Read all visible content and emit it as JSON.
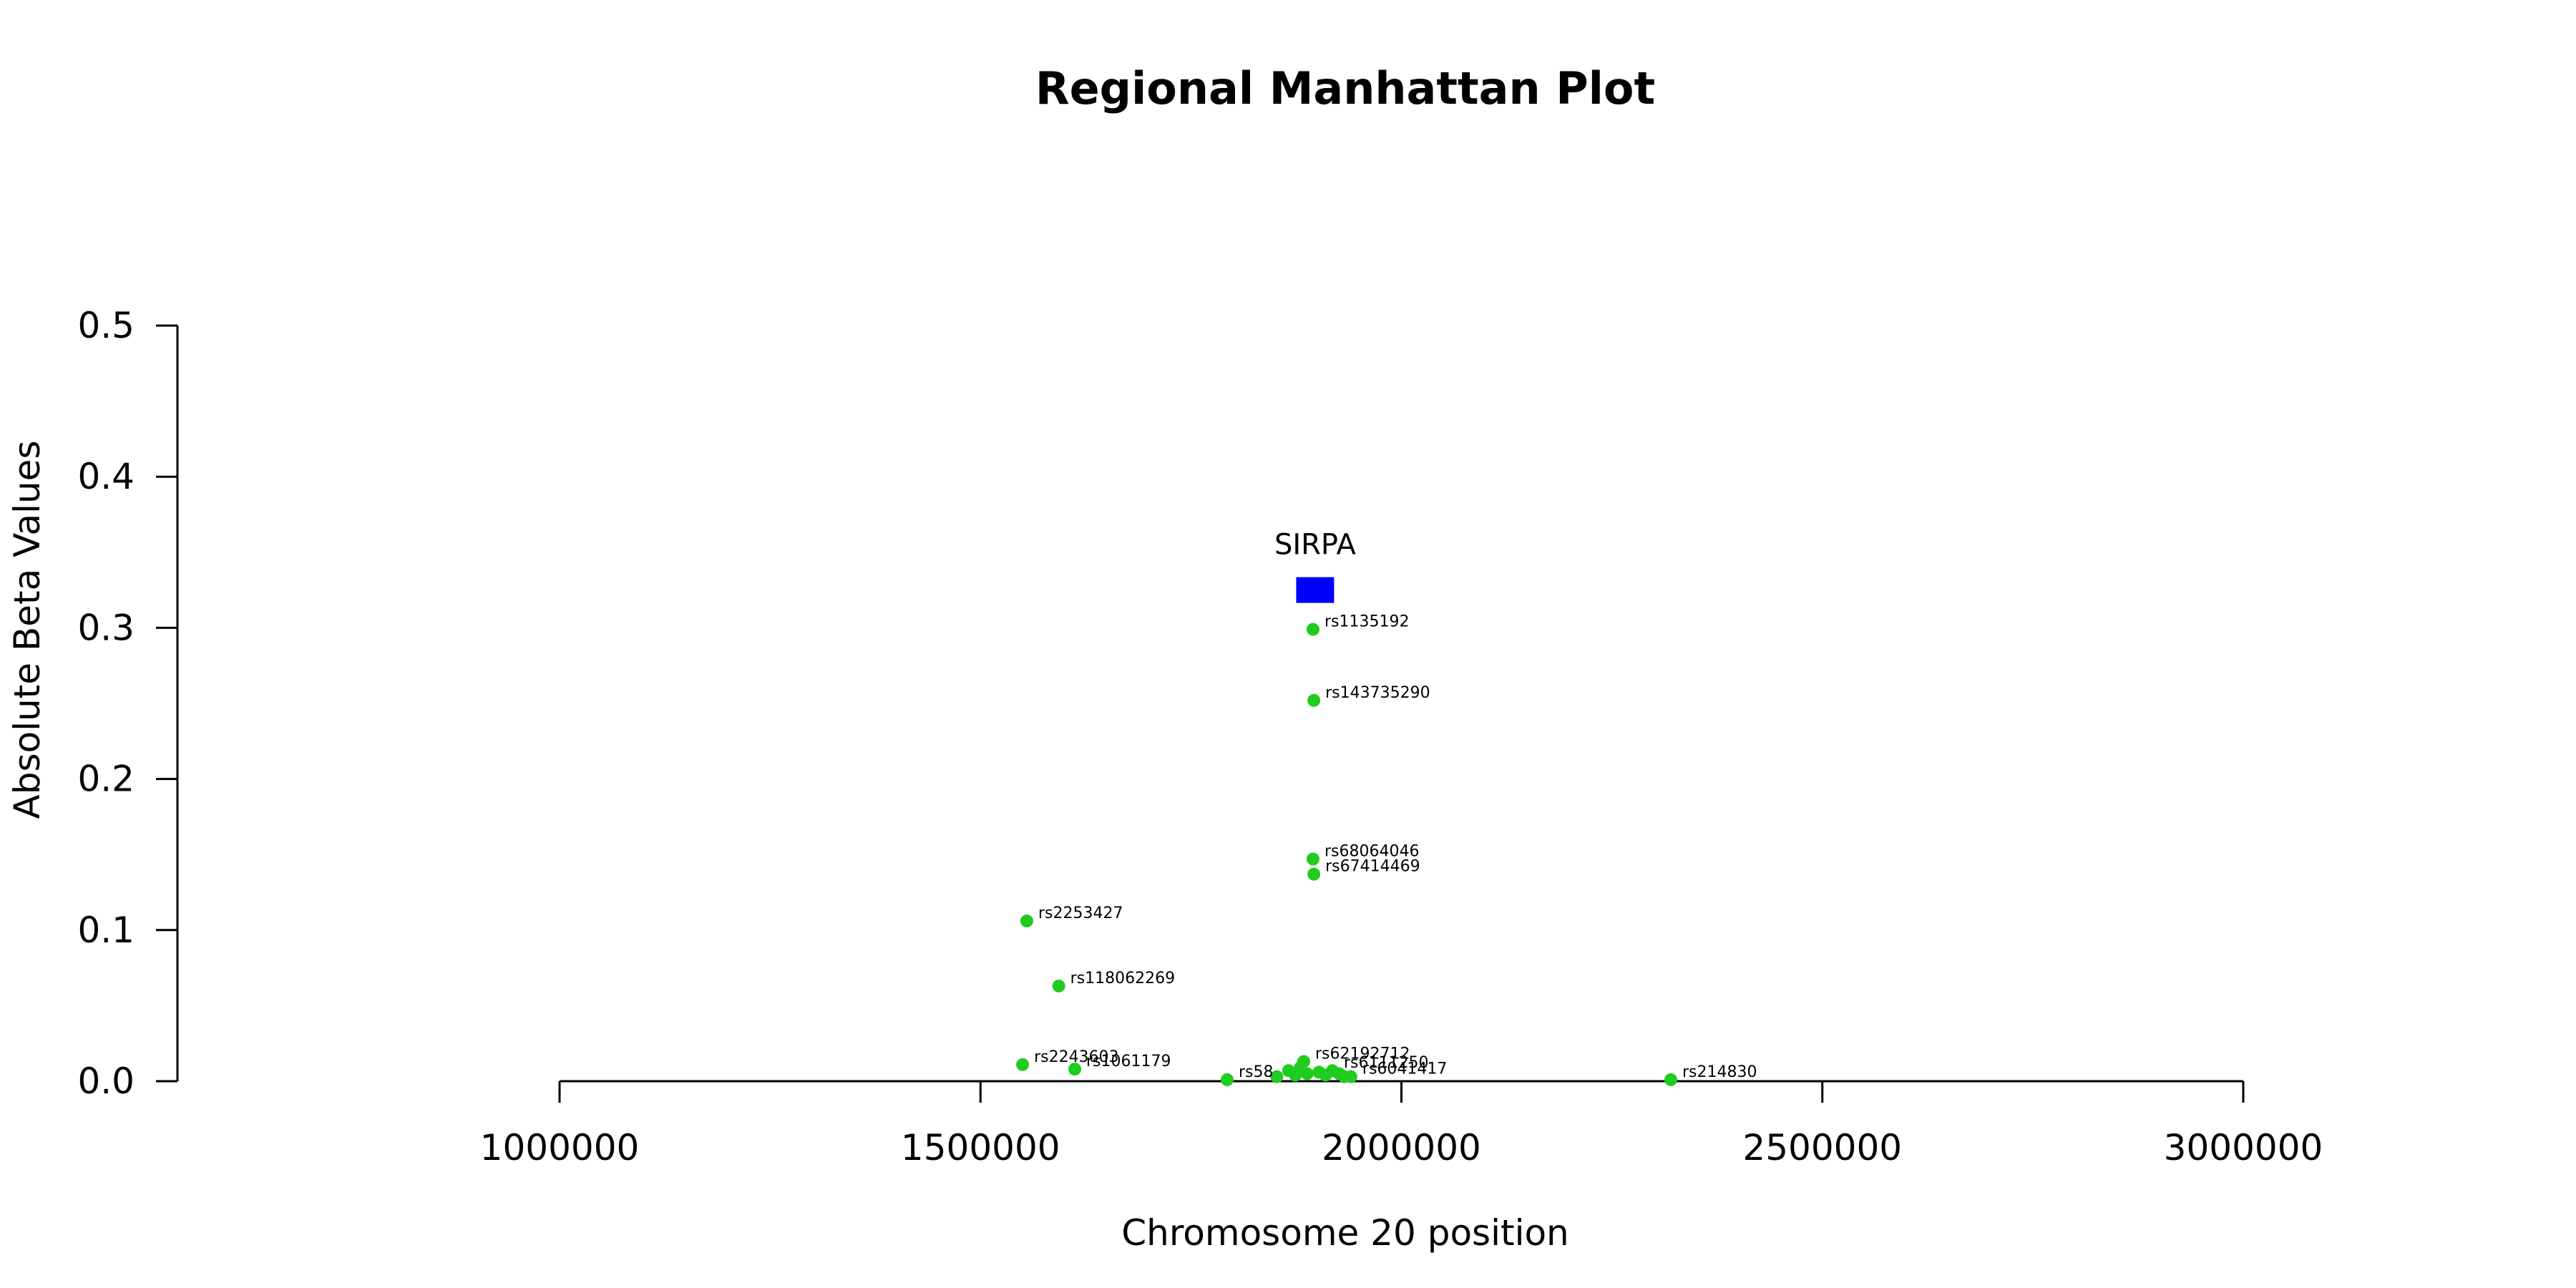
{
  "chart_data": {
    "type": "scatter",
    "title": "Regional Manhattan Plot",
    "xlabel": "Chromosome 20 position",
    "ylabel": "Absolute Beta Values",
    "xlim": [
      1000000,
      3000000
    ],
    "ylim": [
      0,
      0.5
    ],
    "x_ticks": [
      1000000,
      1500000,
      2000000,
      2500000,
      3000000
    ],
    "y_ticks": [
      0.0,
      0.1,
      0.2,
      0.3,
      0.4,
      0.5
    ],
    "grid": false,
    "point_color": "#1fcc1f",
    "gene_color": "#0000ff",
    "gene": {
      "name": "SIRPA",
      "start": 1875000,
      "end": 1920000,
      "y": 0.325
    },
    "points": [
      {
        "label": "rs1135192",
        "x": 1895000,
        "y": 0.299
      },
      {
        "label": "rs143735290",
        "x": 1896000,
        "y": 0.252
      },
      {
        "label": "rs68064046",
        "x": 1895000,
        "y": 0.147
      },
      {
        "label": "rs67414469",
        "x": 1896000,
        "y": 0.137
      },
      {
        "label": "rs2253427",
        "x": 1555000,
        "y": 0.106
      },
      {
        "label": "rs118062269",
        "x": 1593000,
        "y": 0.063
      },
      {
        "label": "rs2243603",
        "x": 1550000,
        "y": 0.011
      },
      {
        "label": "rs1061179",
        "x": 1612000,
        "y": 0.008
      },
      {
        "label": "rs62192712",
        "x": 1884000,
        "y": 0.013
      },
      {
        "label": "rs6111250",
        "x": 1918000,
        "y": 0.007
      },
      {
        "label": "rs6041417",
        "x": 1940000,
        "y": 0.003
      },
      {
        "label": "rs58",
        "x": 1793000,
        "y": 0.001
      },
      {
        "label": "rs214830",
        "x": 2320000,
        "y": 0.001
      }
    ],
    "unlabeled_points": [
      {
        "x": 1852000,
        "y": 0.003
      },
      {
        "x": 1866000,
        "y": 0.007
      },
      {
        "x": 1874000,
        "y": 0.004
      },
      {
        "x": 1880000,
        "y": 0.009
      },
      {
        "x": 1888000,
        "y": 0.005
      },
      {
        "x": 1902000,
        "y": 0.006
      },
      {
        "x": 1910000,
        "y": 0.004
      },
      {
        "x": 1926000,
        "y": 0.005
      },
      {
        "x": 1932000,
        "y": 0.003
      }
    ]
  }
}
